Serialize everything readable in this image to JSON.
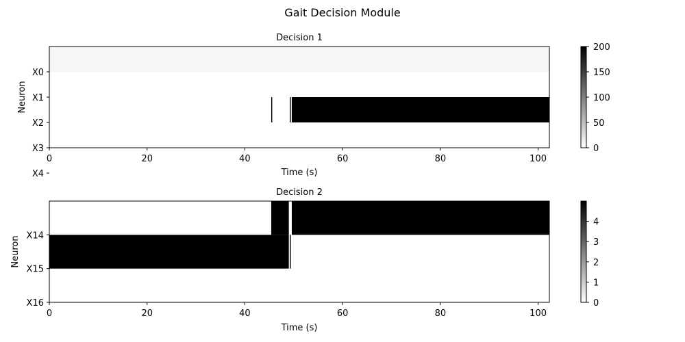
{
  "figure": {
    "title": "Gait Decision Module"
  },
  "chart_data": [
    {
      "type": "heatmap",
      "title": "Decision 1",
      "xlabel": "Time (s)",
      "ylabel": "Neuron",
      "xlim": [
        0,
        102.3
      ],
      "xticks": [
        "0",
        "20",
        "40",
        "60",
        "80",
        "100"
      ],
      "xtick_values": [
        0,
        20,
        40,
        60,
        80,
        100
      ],
      "yticks": [
        "X0",
        "X1",
        "X2",
        "X3",
        "X4"
      ],
      "rows": 5,
      "colormap": "gray_r",
      "colorbar": {
        "min": 0,
        "max": 200,
        "ticks": [
          "0",
          "50",
          "100",
          "150",
          "200"
        ],
        "tick_values": [
          0,
          50,
          100,
          150,
          200
        ]
      },
      "cells": [
        {
          "row": 0,
          "x0": 0,
          "x1": 102.3,
          "value": 7
        },
        {
          "row": 2,
          "x0": 45.4,
          "x1": 45.6,
          "value": 200
        },
        {
          "row": 2,
          "x0": 49.2,
          "x1": 49.4,
          "value": 200
        },
        {
          "row": 2,
          "x0": 49.6,
          "x1": 102.3,
          "value": 200
        }
      ]
    },
    {
      "type": "heatmap",
      "title": "Decision 2",
      "xlabel": "Time (s)",
      "ylabel": "Neuron",
      "xlim": [
        0,
        102.3
      ],
      "xticks": [
        "0",
        "20",
        "40",
        "60",
        "80",
        "100"
      ],
      "xtick_values": [
        0,
        20,
        40,
        60,
        80,
        100
      ],
      "yticks": [
        "X14",
        "X15",
        "X16"
      ],
      "rows": 3,
      "colormap": "gray_r",
      "colorbar": {
        "min": 0,
        "max": 5,
        "ticks": [
          "0",
          "1",
          "2",
          "3",
          "4"
        ],
        "tick_values": [
          0,
          1,
          2,
          3,
          4
        ]
      },
      "cells": [
        {
          "row": 0,
          "x0": 45.4,
          "x1": 49.0,
          "value": 5
        },
        {
          "row": 0,
          "x0": 49.6,
          "x1": 102.3,
          "value": 5
        },
        {
          "row": 1,
          "x0": 0,
          "x1": 49.0,
          "value": 5
        },
        {
          "row": 1,
          "x0": 49.2,
          "x1": 49.4,
          "value": 5
        }
      ]
    }
  ]
}
